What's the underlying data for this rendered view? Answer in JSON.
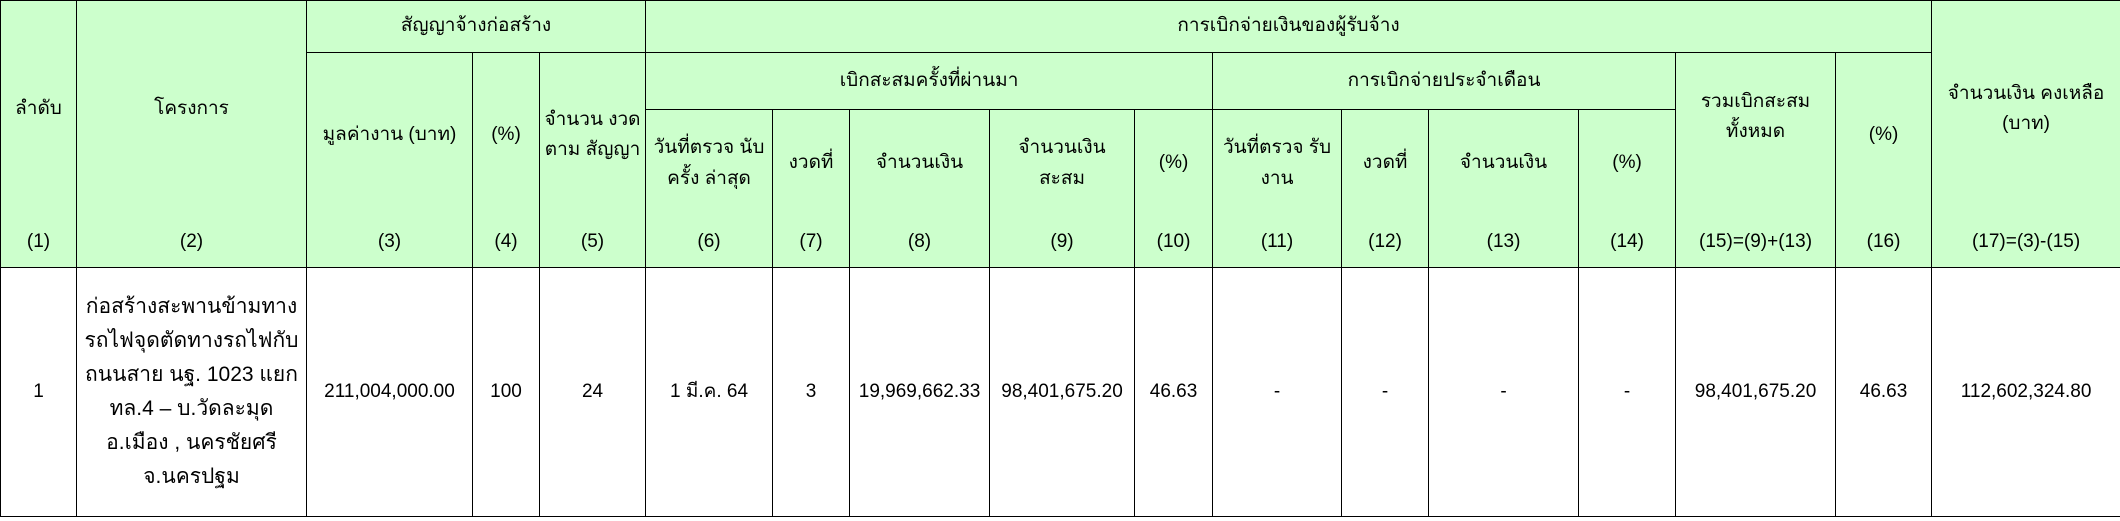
{
  "header": {
    "group_contract": "สัญญาจ้างก่อสร้าง",
    "group_payment": "การเบิกจ่ายเงินของผู้รับจ้าง",
    "sub_previous": "เบิกสะสมครั้งที่ผ่านมา",
    "sub_monthly": "การเบิกจ่ายประจำเดือน",
    "columns": [
      {
        "label": "ลำดับ",
        "num": "(1)"
      },
      {
        "label": "โครงการ",
        "num": "(2)"
      },
      {
        "label": "มูลค่างาน (บาท)",
        "num": "(3)"
      },
      {
        "label": "(%)",
        "num": "(4)"
      },
      {
        "label": "จำนวน งวดตาม สัญญา",
        "num": "(5)"
      },
      {
        "label": "วันที่ตรวจ นับครั้ง ล่าสุด",
        "num": "(6)"
      },
      {
        "label": "งวดที่",
        "num": "(7)"
      },
      {
        "label": "จำนวนเงิน",
        "num": "(8)"
      },
      {
        "label": "จำนวนเงิน สะสม",
        "num": "(9)"
      },
      {
        "label": "(%)",
        "num": "(10)"
      },
      {
        "label": "วันที่ตรวจ รับงาน",
        "num": "(11)"
      },
      {
        "label": "งวดที่",
        "num": "(12)"
      },
      {
        "label": "จำนวนเงิน",
        "num": "(13)"
      },
      {
        "label": "(%)",
        "num": "(14)"
      },
      {
        "label": "รวมเบิกสะสม ทั้งหมด",
        "num": "(15)=(9)+(13)"
      },
      {
        "label": "(%)",
        "num": "(16)"
      },
      {
        "label": "จำนวนเงิน คงเหลือ (บาท)",
        "num": "(17)=(3)-(15)"
      }
    ]
  },
  "rows": [
    {
      "cells": [
        "1",
        "ก่อสร้างสะพานข้ามทางรถไฟจุดตัดทางรถไฟกับถนนสาย นฐ. 1023 แยกทล.4 – บ.วัดละมุด อ.เมือง , นครชัยศรี จ.นครปฐม",
        "211,004,000.00",
        "100",
        "24",
        "1 มี.ค. 64",
        "3",
        "19,969,662.33",
        "98,401,675.20",
        "46.63",
        "-",
        "-",
        "-",
        "-",
        "98,401,675.20",
        "46.63",
        "112,602,324.80"
      ]
    }
  ],
  "colors": {
    "header_bg": "#ccffcc",
    "border": "#000000",
    "body_bg": "#ffffff"
  }
}
